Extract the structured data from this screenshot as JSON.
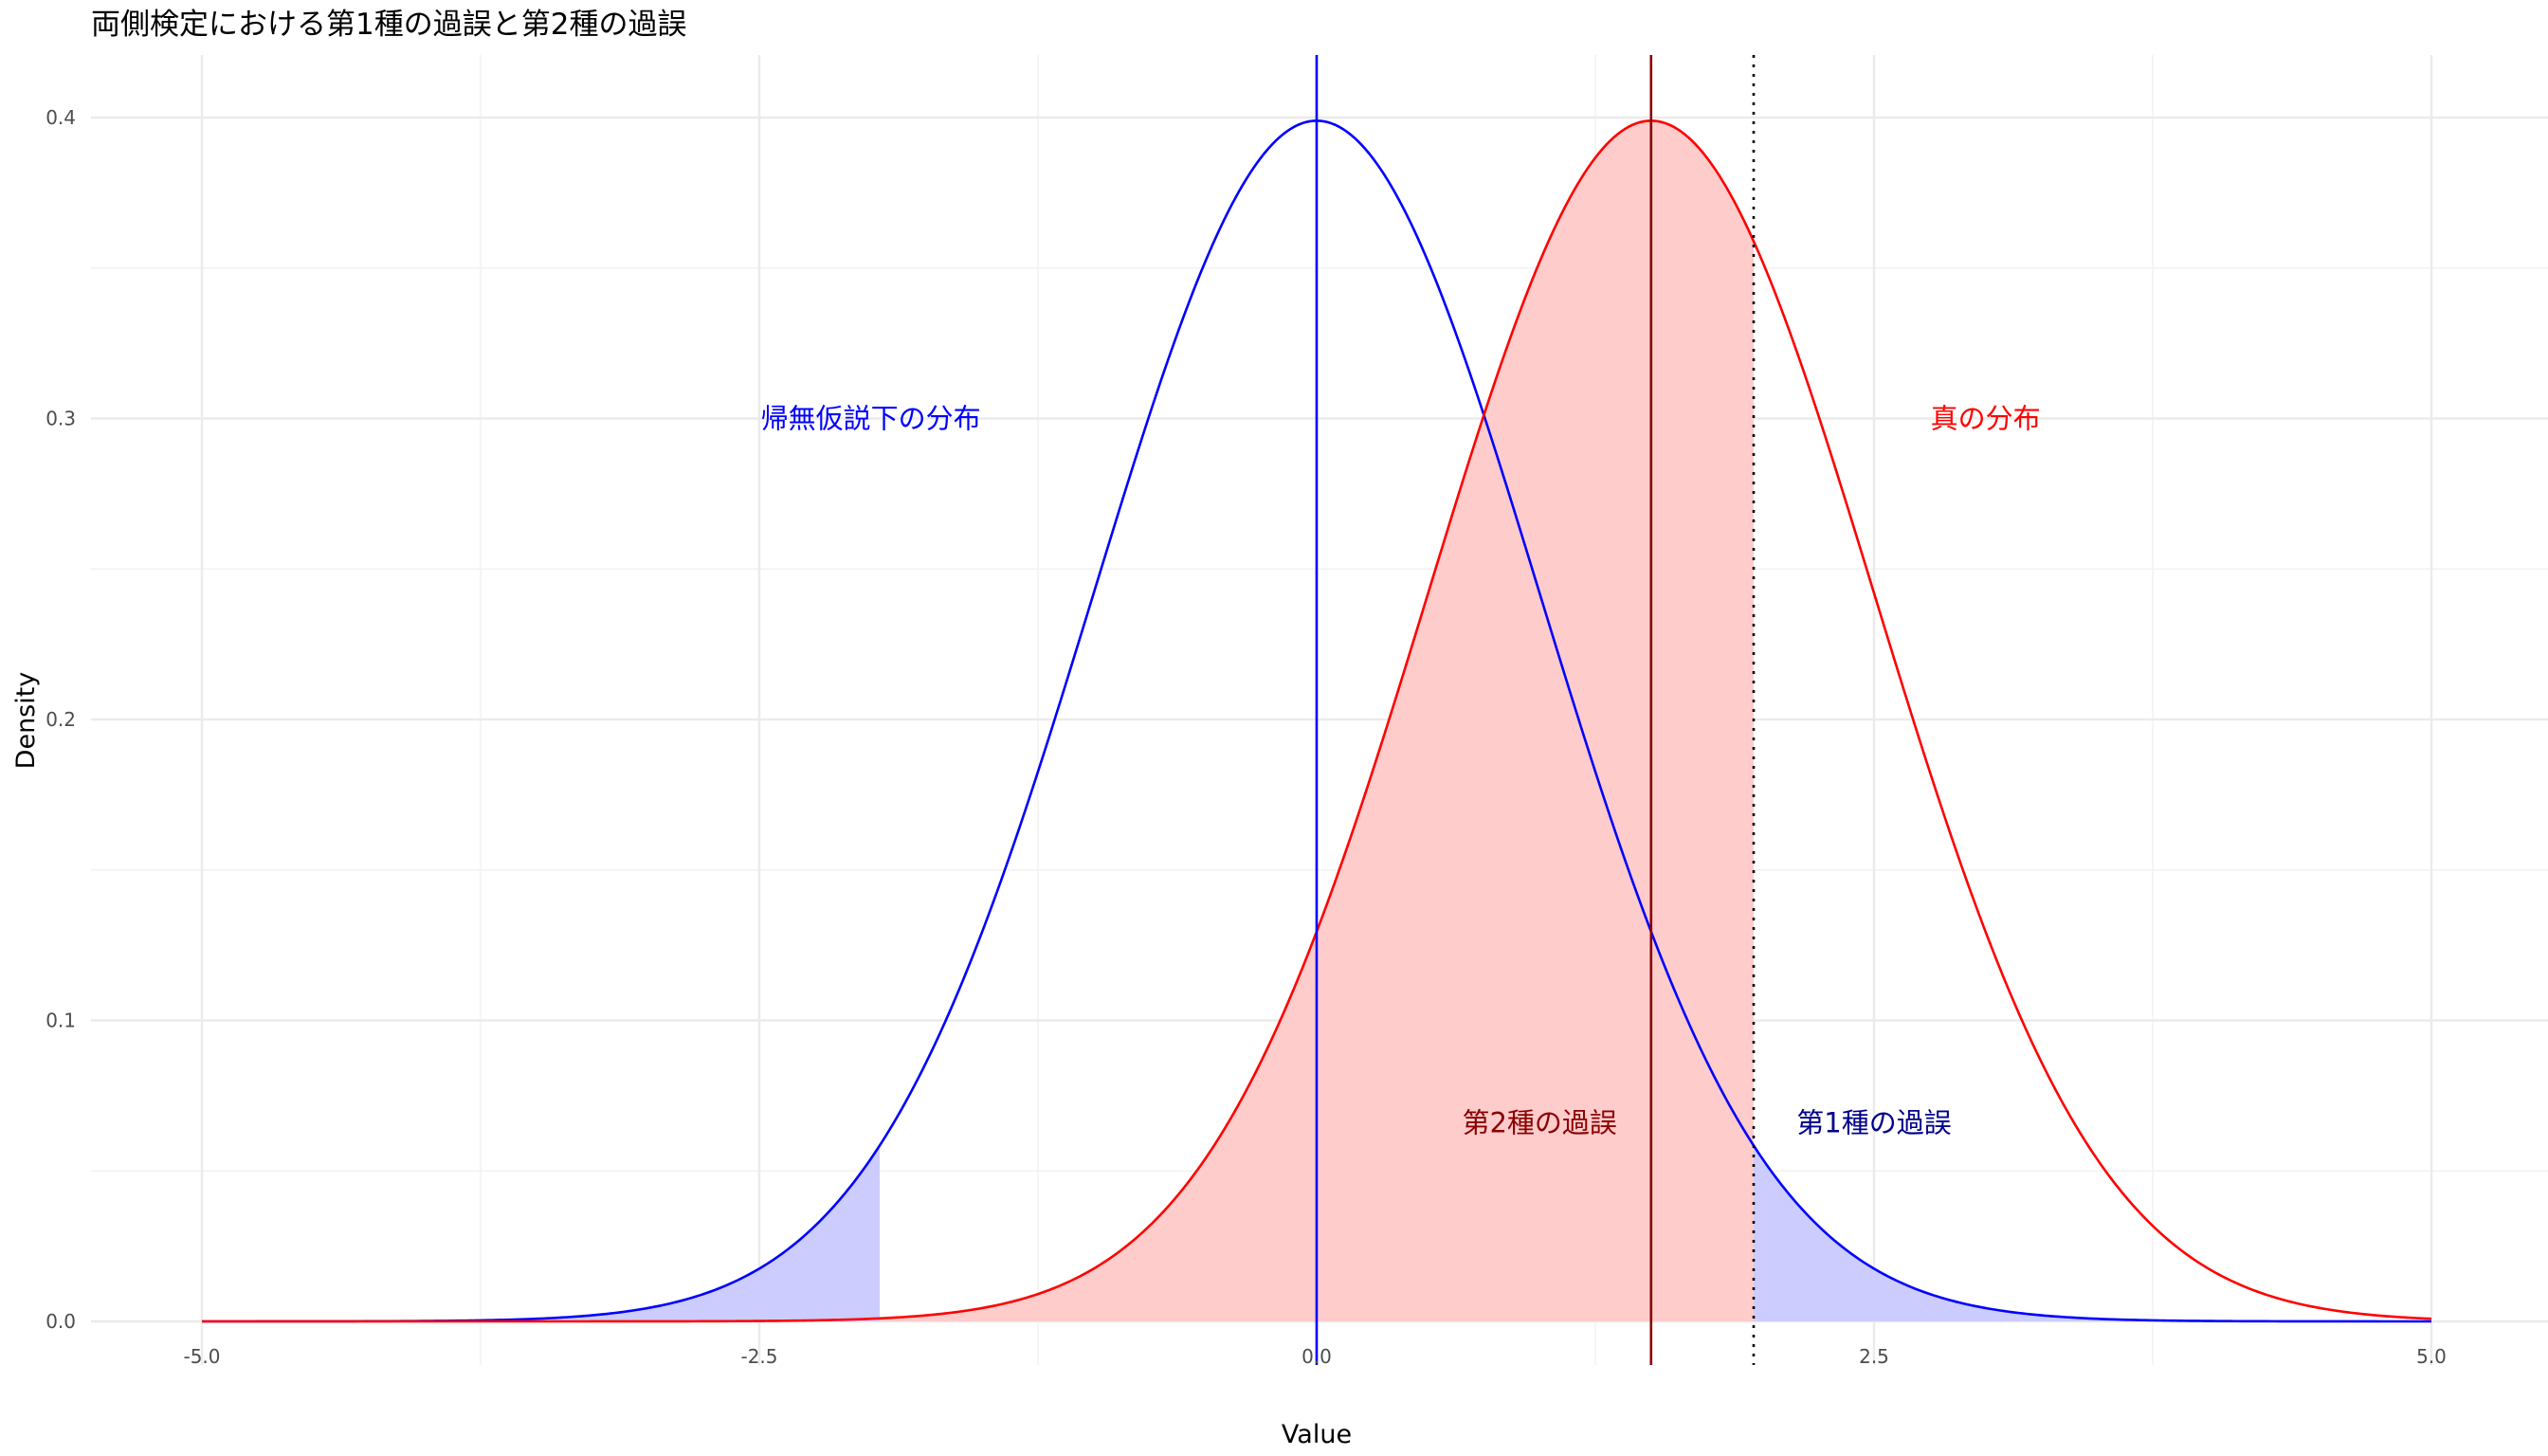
{
  "chart_data": {
    "type": "area",
    "title": "両側検定における第1種の過誤と第2種の過誤",
    "xlabel": "Value",
    "ylabel": "Density",
    "xlim": [
      -5.0,
      5.0
    ],
    "ylim": [
      0.0,
      0.4
    ],
    "x_ticks": [
      -5.0,
      -2.5,
      0.0,
      2.5,
      5.0
    ],
    "x_tick_labels": [
      "-5.0",
      "-2.5",
      "0.0",
      "2.5",
      "5.0"
    ],
    "y_ticks": [
      0.0,
      0.1,
      0.2,
      0.3,
      0.4
    ],
    "y_tick_labels": [
      "0.0",
      "0.1",
      "0.2",
      "0.3",
      "0.4"
    ],
    "grid": true,
    "series": [
      {
        "distribution": "normal",
        "mean": 0.0,
        "sd": 1.0,
        "color": "#0000ff",
        "x": [
          -5.0,
          -4.5,
          -4.0,
          -3.5,
          -3.0,
          -2.5,
          -2.0,
          -1.5,
          -1.0,
          -0.5,
          0.0,
          0.5,
          1.0,
          1.5,
          2.0,
          2.5,
          3.0,
          3.5,
          4.0,
          4.5,
          5.0
        ],
        "y": [
          0.0,
          0.0,
          0.0001,
          0.0009,
          0.0044,
          0.0175,
          0.054,
          0.1295,
          0.242,
          0.3521,
          0.3989,
          0.3521,
          0.242,
          0.1295,
          0.054,
          0.0175,
          0.0044,
          0.0009,
          0.0001,
          0.0,
          0.0
        ]
      },
      {
        "distribution": "normal",
        "mean": 1.5,
        "sd": 1.0,
        "color": "#ff0000",
        "x": [
          -5.0,
          -4.5,
          -4.0,
          -3.5,
          -3.0,
          -2.5,
          -2.0,
          -1.5,
          -1.0,
          -0.5,
          0.0,
          0.5,
          1.0,
          1.5,
          2.0,
          2.5,
          3.0,
          3.5,
          4.0,
          4.5,
          5.0
        ],
        "y": [
          0.0,
          0.0,
          0.0,
          0.0,
          0.0,
          0.0001,
          0.0009,
          0.0044,
          0.0175,
          0.054,
          0.1295,
          0.242,
          0.3521,
          0.3989,
          0.3521,
          0.242,
          0.1295,
          0.054,
          0.0175,
          0.0044,
          0.0009
        ]
      }
    ],
    "shaded_regions": [
      {
        "under": "mean 0 curve",
        "x_range": [
          -5.0,
          -1.96
        ],
        "color": "#ccccff"
      },
      {
        "under": "mean 0 curve",
        "x_range": [
          1.96,
          5.0
        ],
        "color": "#ccccff"
      },
      {
        "under": "mean 1.5 curve",
        "x_range": [
          -1.96,
          1.96
        ],
        "color": "#ffcccc"
      }
    ],
    "vertical_lines": [
      {
        "x": 0.0,
        "color": "#0000ff",
        "style": "solid"
      },
      {
        "x": 1.5,
        "color": "#8b0000",
        "style": "solid"
      },
      {
        "x": 1.96,
        "color": "#000000",
        "style": "dotted"
      }
    ],
    "annotations": [
      {
        "text": "帰無仮説下の分布",
        "x": -2.0,
        "y": 0.3,
        "color": "#0000ff"
      },
      {
        "text": "真の分布",
        "x": 3.0,
        "y": 0.3,
        "color": "#ff0000"
      },
      {
        "text": "第2種の過誤",
        "x": 1.0,
        "y": 0.066,
        "color": "#8b0000"
      },
      {
        "text": "第1種の過誤",
        "x": 2.5,
        "y": 0.066,
        "color": "#00008b"
      }
    ]
  }
}
